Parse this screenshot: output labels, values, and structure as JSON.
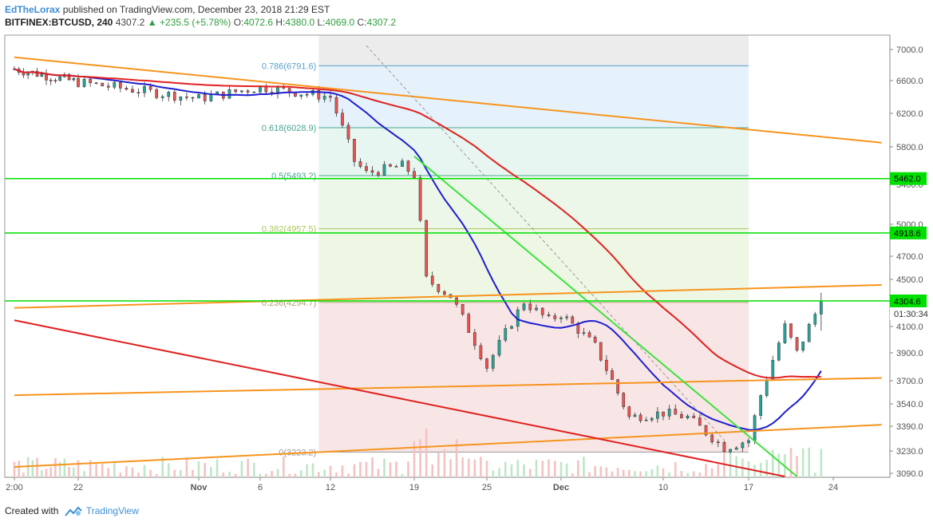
{
  "header": {
    "author": "EdTheLorax",
    "published": "published on TradingView.com, December 23, 2018 21:29 EST",
    "symbol": "BITFINEX:BTCUSD, 240",
    "last": "4307.2",
    "change": "▲ +235.5 (+5.78%)",
    "o_key": "O:",
    "o_val": "4072.6",
    "h_key": "H:",
    "h_val": "4380.0",
    "l_key": "L:",
    "l_val": "4069.0",
    "c_key": "C:",
    "c_val": "4307.2"
  },
  "footer": {
    "created_with": "Created with",
    "brand": "TradingView"
  },
  "colors": {
    "up": "#26a69a",
    "down": "#ef5350",
    "candle_outline": "#333333",
    "ma_fast": "#1f1fcf",
    "ma_slow": "#e0211f",
    "channel": "#f7941d",
    "fib_level_line": "#5aa0c8",
    "horizontal": "#00e000",
    "trend_green": "#3ee23e",
    "trend_red": "#e0211f",
    "dashed": "#999999"
  },
  "chart_data": {
    "type": "candlestick",
    "ylim": [
      3070,
      7100
    ],
    "y_ticks": [
      3090,
      3230,
      3390,
      3540,
      3700,
      3900,
      4100,
      4300,
      4500,
      4700,
      5000,
      5400,
      5800,
      6200,
      6600,
      7000
    ],
    "y_tick_labels": [
      "3090.0",
      "3230.0",
      "3390.0",
      "3540.0",
      "3700.0",
      "3900.0",
      "4100.0",
      "4300.0",
      "4500.0",
      "4700.0",
      "5000.0",
      "5400.0",
      "5800.0",
      "6200.0",
      "6600.0",
      "7000.0"
    ],
    "x_ticks": [
      {
        "label": "2:00",
        "date": "2018-10-15"
      },
      {
        "label": "22",
        "date": "2018-10-22"
      },
      {
        "label": "Nov",
        "date": "2018-11-01"
      },
      {
        "label": "6",
        "date": "2018-11-06"
      },
      {
        "label": "12",
        "date": "2018-11-12"
      },
      {
        "label": "19",
        "date": "2018-11-19"
      },
      {
        "label": "25",
        "date": "2018-11-25"
      },
      {
        "label": "Dec",
        "date": "2018-12-01"
      },
      {
        "label": "10",
        "date": "2018-12-10"
      },
      {
        "label": "17",
        "date": "2018-12-17"
      },
      {
        "label": "24",
        "date": "2018-12-24"
      }
    ],
    "fib_levels": [
      {
        "label": "0.786(6791.6)",
        "value": 6791.6
      },
      {
        "label": "0.618(6028.9)",
        "value": 6028.9
      },
      {
        "label": "0.5(5493.2)",
        "value": 5493.2
      },
      {
        "label": "0.382(4957.5)",
        "value": 4957.5
      },
      {
        "label": "0.236(4294.7)",
        "value": 4294.7
      },
      {
        "label": "0(3223.2)",
        "value": 3223.2
      }
    ],
    "price_labels": [
      {
        "value": 5462.0,
        "label": "5462.0",
        "color": "#00e000"
      },
      {
        "value": 4918.6,
        "label": "4918.6",
        "color": "#00e000"
      },
      {
        "value": 4307.2,
        "label": "4307.2",
        "color": "#00e000"
      },
      {
        "value": 4304.6,
        "label": "4304.6",
        "color": "#00e000"
      }
    ],
    "countdown": "01:30:34",
    "key_points": [
      {
        "date": "2018-10-15",
        "price": 6750
      },
      {
        "date": "2018-10-22",
        "price": 6580
      },
      {
        "date": "2018-11-01",
        "price": 6380
      },
      {
        "date": "2018-11-06",
        "price": 6520
      },
      {
        "date": "2018-11-12",
        "price": 6400
      },
      {
        "date": "2018-11-14",
        "price": 5650
      },
      {
        "date": "2018-11-15",
        "price": 5520
      },
      {
        "date": "2018-11-18",
        "price": 5600
      },
      {
        "date": "2018-11-19",
        "price": 5500
      },
      {
        "date": "2018-11-20",
        "price": 4500
      },
      {
        "date": "2018-11-22",
        "price": 4350
      },
      {
        "date": "2018-11-25",
        "price": 3800
      },
      {
        "date": "2018-11-28",
        "price": 4300
      },
      {
        "date": "2018-11-30",
        "price": 4150
      },
      {
        "date": "2018-12-01",
        "price": 4200
      },
      {
        "date": "2018-12-04",
        "price": 3950
      },
      {
        "date": "2018-12-07",
        "price": 3450
      },
      {
        "date": "2018-12-10",
        "price": 3480
      },
      {
        "date": "2018-12-12",
        "price": 3450
      },
      {
        "date": "2018-12-15",
        "price": 3250
      },
      {
        "date": "2018-12-17",
        "price": 3300
      },
      {
        "date": "2018-12-18",
        "price": 3600
      },
      {
        "date": "2018-12-20",
        "price": 4100
      },
      {
        "date": "2018-12-21",
        "price": 3900
      },
      {
        "date": "2018-12-23",
        "price": 4300
      }
    ]
  }
}
